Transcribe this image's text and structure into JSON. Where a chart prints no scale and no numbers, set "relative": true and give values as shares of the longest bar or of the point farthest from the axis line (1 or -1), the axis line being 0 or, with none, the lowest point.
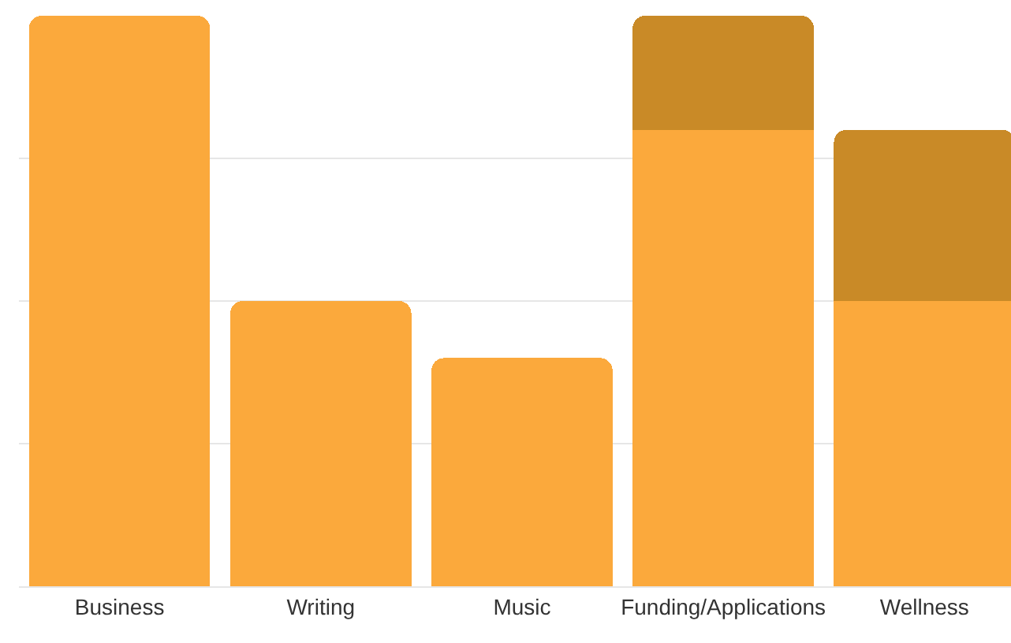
{
  "chart_data": {
    "type": "bar",
    "relative": true,
    "stacked": true,
    "grid": "y",
    "categories": [
      "Business",
      "Writing",
      "Music",
      "Funding/Applications",
      "Wellness"
    ],
    "series": [
      {
        "color": "#fba93c",
        "values": [
          1.0,
          0.5,
          0.4,
          0.8,
          0.5
        ]
      },
      {
        "color": "#c98a27",
        "values": [
          null,
          null,
          null,
          0.2,
          0.3
        ]
      }
    ]
  }
}
